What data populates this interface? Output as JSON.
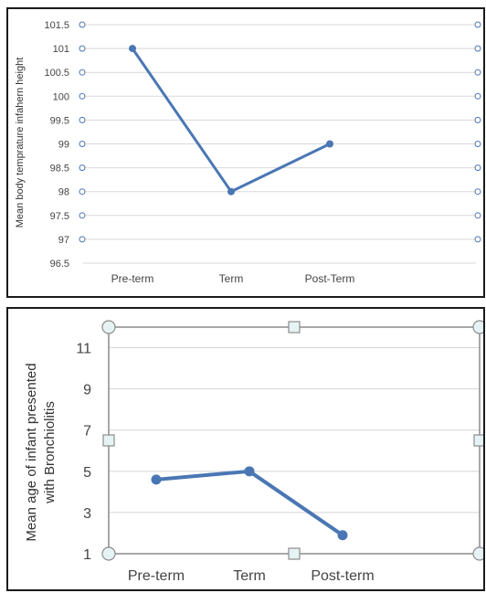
{
  "chart_data": [
    {
      "type": "line",
      "categories": [
        "Pre-term",
        "Term",
        "Post-Term"
      ],
      "values": [
        101,
        98,
        99
      ],
      "xlabel": "",
      "ylabel": "Mean body temprature infahern height",
      "ylim": [
        96.5,
        101.5
      ],
      "yticks": [
        "101.5",
        "101",
        "100.5",
        "100",
        "99.5",
        "99",
        "98.5",
        "98",
        "97.5",
        "97",
        "96.5"
      ],
      "grid": true,
      "color": "#4a77b4"
    },
    {
      "type": "line",
      "categories": [
        "Pre-term",
        "Term",
        "Post-term"
      ],
      "values": [
        4.6,
        5.0,
        1.9
      ],
      "xlabel": "",
      "ylabel_lines": [
        "Mean age of infant presented",
        "with Bronchiolitis"
      ],
      "ylim": [
        1,
        12
      ],
      "yticks": [
        "11",
        "9",
        "7",
        "5",
        "3",
        "1"
      ],
      "grid": true,
      "color": "#4a77b4"
    }
  ]
}
